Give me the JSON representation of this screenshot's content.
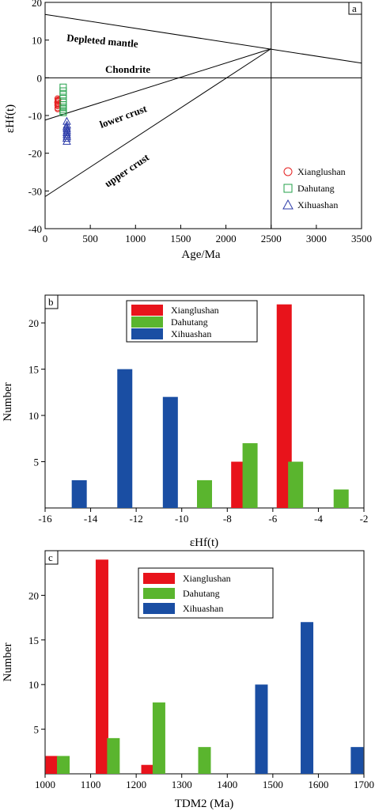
{
  "chart_data": [
    {
      "type": "scatter",
      "panel_label": "a",
      "xlabel": "Age/Ma",
      "ylabel": "εHf(t)",
      "xlim": [
        0,
        3500
      ],
      "ylim": [
        -40,
        20
      ],
      "xticks": [
        0,
        500,
        1000,
        1500,
        2000,
        2500,
        3000,
        3500
      ],
      "yticks": [
        20,
        10,
        0,
        -10,
        -20,
        -30,
        -40
      ],
      "reference_lines": [
        {
          "label": "Depleted mantle",
          "points": [
            [
              0,
              16.8
            ],
            [
              3500,
              3.9
            ]
          ]
        },
        {
          "label": "Chondrite",
          "points": [
            [
              0,
              0
            ],
            [
              3500,
              0
            ]
          ]
        },
        {
          "label": "lower crust",
          "points": [
            [
              0,
              -11.2
            ],
            [
              2500,
              7.7
            ]
          ]
        },
        {
          "label": "upper crust",
          "points": [
            [
              0,
              -31.5
            ],
            [
              2500,
              7.7
            ]
          ]
        },
        {
          "label": "",
          "points": [
            [
              2500,
              -40
            ],
            [
              2500,
              20
            ]
          ]
        }
      ],
      "series": [
        {
          "name": "Xianglushan",
          "marker": "circle",
          "color": "#e52222",
          "x": [
            138,
            142,
            136,
            144,
            140,
            139,
            141,
            137,
            143,
            140
          ],
          "y": [
            -5.5,
            -6.0,
            -6.5,
            -7.0,
            -7.5,
            -8.0,
            -6.2,
            -7.2,
            -5.8,
            -8.3
          ]
        },
        {
          "name": "Dahutang",
          "marker": "square",
          "color": "#23a04a",
          "x": [
            200,
            200,
            200,
            200,
            200,
            200,
            200,
            200,
            200,
            200
          ],
          "y": [
            -2.5,
            -3.5,
            -4.5,
            -5.5,
            -6.5,
            -7.2,
            -7.8,
            -8.3,
            -8.8,
            -9.2
          ]
        },
        {
          "name": "Xihuashan",
          "marker": "triangle",
          "color": "#2b3aa8",
          "x": [
            240,
            242,
            238,
            240,
            241,
            239,
            240,
            242,
            238,
            240
          ],
          "y": [
            -11.5,
            -12.5,
            -13.0,
            -13.5,
            -14.0,
            -14.5,
            -15.0,
            -15.5,
            -16.0,
            -16.8
          ]
        }
      ]
    },
    {
      "type": "bar",
      "panel_label": "b",
      "xlabel": "εHf(t)",
      "ylabel": "Number",
      "xlim": [
        -16,
        -2
      ],
      "ylim": [
        0,
        23
      ],
      "xticks": [
        -16,
        -14,
        -12,
        -10,
        -8,
        -6,
        -4,
        -2
      ],
      "yticks": [
        5,
        10,
        15,
        20
      ],
      "series": [
        {
          "name": "Xianglushan",
          "color": "#e8131b",
          "bins": [
            -7.5,
            -5.5
          ],
          "values": [
            5,
            22
          ]
        },
        {
          "name": "Dahutang",
          "color": "#5ab52e",
          "bins": [
            -9,
            -7,
            -5,
            -3
          ],
          "values": [
            3,
            7,
            5,
            2
          ]
        },
        {
          "name": "Xihuashan",
          "color": "#1a4ea3",
          "bins": [
            -14.5,
            -12.5,
            -10.5
          ],
          "values": [
            3,
            15,
            12
          ]
        }
      ]
    },
    {
      "type": "bar",
      "panel_label": "c",
      "xlabel": "TDM2 (Ma)",
      "ylabel": "Number",
      "xlim": [
        1000,
        1700
      ],
      "ylim": [
        0,
        25
      ],
      "xticks": [
        1000,
        1100,
        1200,
        1300,
        1400,
        1500,
        1600,
        1700
      ],
      "yticks": [
        5,
        10,
        15,
        20
      ],
      "series": [
        {
          "name": "Xianglushan",
          "color": "#e8131b",
          "bins": [
            1015,
            1125,
            1225
          ],
          "values": [
            2,
            24,
            1
          ]
        },
        {
          "name": "Dahutang",
          "color": "#5ab52e",
          "bins": [
            1040,
            1150,
            1250,
            1350
          ],
          "values": [
            2,
            4,
            8,
            3
          ]
        },
        {
          "name": "Xihuashan",
          "color": "#1a4ea3",
          "bins": [
            1475,
            1575,
            1685
          ],
          "values": [
            10,
            17,
            3
          ]
        }
      ]
    }
  ]
}
